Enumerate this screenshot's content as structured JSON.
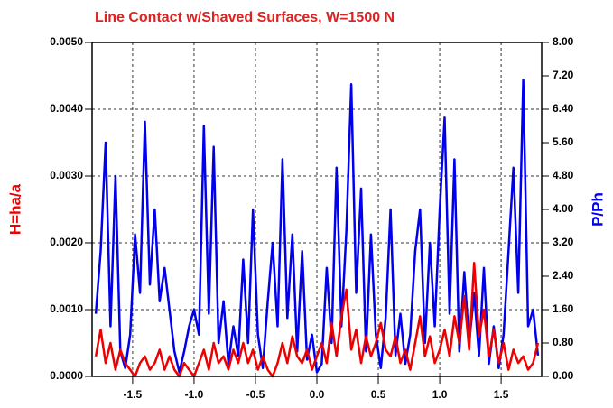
{
  "chart_data": {
    "type": "line",
    "title": "Line Contact w/Shaved Surfaces, W=1500 N",
    "ylabel": "H=ha/a",
    "y2label": "P/Ph",
    "x": [
      -1.8,
      -1.76,
      -1.72,
      -1.68,
      -1.64,
      -1.6,
      -1.56,
      -1.52,
      -1.48,
      -1.44,
      -1.4,
      -1.36,
      -1.32,
      -1.28,
      -1.24,
      -1.2,
      -1.16,
      -1.12,
      -1.08,
      -1.04,
      -1.0,
      -0.96,
      -0.92,
      -0.88,
      -0.84,
      -0.8,
      -0.76,
      -0.72,
      -0.68,
      -0.64,
      -0.6,
      -0.56,
      -0.52,
      -0.48,
      -0.44,
      -0.4,
      -0.36,
      -0.32,
      -0.28,
      -0.24,
      -0.2,
      -0.16,
      -0.12,
      -0.08,
      -0.04,
      0.0,
      0.04,
      0.08,
      0.12,
      0.16,
      0.2,
      0.24,
      0.28,
      0.32,
      0.36,
      0.4,
      0.44,
      0.48,
      0.52,
      0.56,
      0.6,
      0.64,
      0.68,
      0.72,
      0.76,
      0.8,
      0.84,
      0.88,
      0.92,
      0.96,
      1.0,
      1.04,
      1.08,
      1.12,
      1.16,
      1.2,
      1.24,
      1.28,
      1.32,
      1.36,
      1.4,
      1.44,
      1.48,
      1.52,
      1.56,
      1.6,
      1.64,
      1.68,
      1.72,
      1.76,
      1.8
    ],
    "series": [
      {
        "name": "P/Ph",
        "color": "#0000ee",
        "axis": "y2",
        "values": [
          1.5,
          3.0,
          5.6,
          1.2,
          4.8,
          0.6,
          0.2,
          1.0,
          3.4,
          2.0,
          6.1,
          2.2,
          4.0,
          1.8,
          2.6,
          1.6,
          0.6,
          0.1,
          0.6,
          1.2,
          1.6,
          1.0,
          6.0,
          1.5,
          5.5,
          0.8,
          1.8,
          0.3,
          1.2,
          0.5,
          2.8,
          0.8,
          4.0,
          1.0,
          0.2,
          1.8,
          3.2,
          1.2,
          5.2,
          1.4,
          3.4,
          0.6,
          3.0,
          0.4,
          1.0,
          0.1,
          0.3,
          2.6,
          0.8,
          5.0,
          1.2,
          3.5,
          7.0,
          2.0,
          4.5,
          0.6,
          3.4,
          1.0,
          0.2,
          1.4,
          4.0,
          0.5,
          1.5,
          0.3,
          1.0,
          3.0,
          4.0,
          0.8,
          3.2,
          1.2,
          4.0,
          6.2,
          1.5,
          5.2,
          0.6,
          2.5,
          0.8,
          2.0,
          0.5,
          2.6,
          0.3,
          1.2,
          0.2,
          1.0,
          3.0,
          5.0,
          2.0,
          7.1,
          1.2,
          1.6,
          0.5
        ]
      },
      {
        "name": "H=ha/a",
        "color": "#ee0000",
        "values": [
          0.0003,
          0.0007,
          0.0002,
          0.0005,
          0.0001,
          0.0004,
          0.0002,
          0.0001,
          0.0,
          0.0002,
          0.0003,
          0.0001,
          0.0002,
          0.0004,
          0.0001,
          0.0003,
          0.0001,
          0.0,
          0.0002,
          0.0001,
          0.0,
          0.0002,
          0.0004,
          0.0001,
          0.0005,
          0.0002,
          0.0003,
          0.0001,
          0.0004,
          0.0002,
          0.0005,
          0.0002,
          0.0004,
          0.0001,
          0.0003,
          0.0001,
          0.0,
          0.0002,
          0.0005,
          0.0002,
          0.0006,
          0.0003,
          0.0002,
          0.0004,
          0.0001,
          0.0003,
          0.0005,
          0.0002,
          0.0008,
          0.0003,
          0.0009,
          0.0013,
          0.0004,
          0.0007,
          0.0002,
          0.0006,
          0.0003,
          0.0005,
          0.0008,
          0.0004,
          0.0003,
          0.0006,
          0.0002,
          0.0004,
          0.0001,
          0.0005,
          0.0009,
          0.0003,
          0.0006,
          0.0002,
          0.0004,
          0.0007,
          0.0003,
          0.0009,
          0.0005,
          0.0012,
          0.0004,
          0.0017,
          0.0006,
          0.001,
          0.0003,
          0.0007,
          0.0002,
          0.0005,
          0.0001,
          0.0004,
          0.0002,
          0.0003,
          0.0001,
          0.0002,
          0.0005
        ]
      }
    ],
    "xlim": [
      -1.83,
      1.83
    ],
    "xticks": [
      -1.5,
      {
        "value": -1.0,
        "label": "-1.0"
      },
      -0.5,
      {
        "value": 0.0,
        "label": "0.0"
      },
      0.5,
      {
        "value": 1.0,
        "label": "1.0"
      },
      1.5
    ],
    "ylim": [
      0,
      0.005
    ],
    "yticks": [
      {
        "value": 0,
        "label": "0.0000"
      },
      {
        "value": 0.001,
        "label": "0.0010"
      },
      {
        "value": 0.002,
        "label": "0.0020"
      },
      {
        "value": 0.003,
        "label": "0.0030"
      },
      {
        "value": 0.004,
        "label": "0.0040"
      },
      {
        "value": 0.005,
        "label": "0.0050"
      }
    ],
    "y2lim": [
      0,
      8
    ],
    "y2ticks": [
      {
        "value": 0,
        "label": "0.00"
      },
      {
        "value": 0.8,
        "label": "0.80"
      },
      {
        "value": 1.6,
        "label": "1.60"
      },
      {
        "value": 2.4,
        "label": "2.40"
      },
      {
        "value": 3.2,
        "label": "3.20"
      },
      {
        "value": 4,
        "label": "4.00"
      },
      {
        "value": 4.8,
        "label": "4.80"
      },
      {
        "value": 5.6,
        "label": "5.60"
      },
      {
        "value": 6.4,
        "label": "6.40"
      },
      {
        "value": 7.2,
        "label": "7.20"
      },
      {
        "value": 8,
        "label": "8.00"
      }
    ],
    "grid": true
  }
}
